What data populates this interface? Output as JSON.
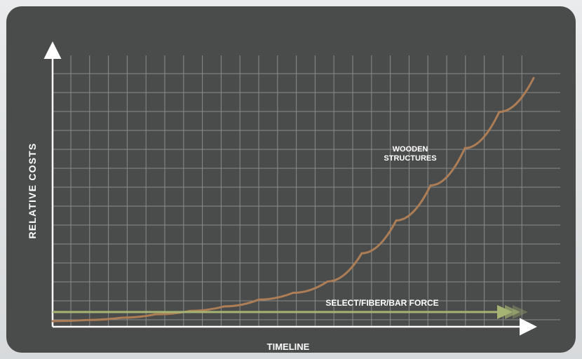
{
  "chart_data": {
    "type": "line",
    "xlabel": "TIMELINE",
    "ylabel": "RELATIVE COSTS",
    "grid": true,
    "series": [
      {
        "name": "WOODEN STRUCTURES",
        "color": "#ad7e56",
        "shape": "exponential rise",
        "x": [
          0,
          2,
          4,
          6,
          8,
          10,
          12,
          14,
          16,
          18,
          20,
          22,
          24,
          26,
          28
        ],
        "y": [
          0.5,
          0.6,
          0.8,
          1.1,
          1.4,
          1.8,
          2.4,
          3.0,
          4.0,
          6.5,
          9.4,
          12.5,
          15.8,
          19.0,
          22.0
        ]
      },
      {
        "name": "SELECT/FIBER/BAR FORCE",
        "color": "#a5b473",
        "shape": "flat constant",
        "x": [
          0,
          28
        ],
        "y": [
          1.3,
          1.3
        ]
      }
    ]
  }
}
